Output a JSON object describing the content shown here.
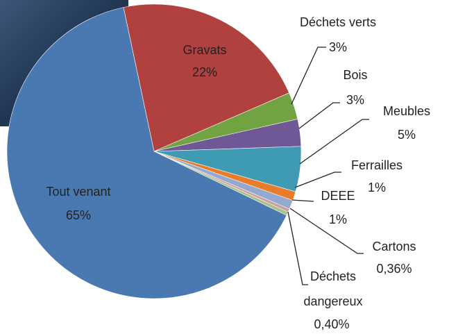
{
  "chart_data": {
    "type": "pie",
    "categories": [
      "Gravats",
      "Déchets verts",
      "Bois",
      "Meubles",
      "Ferrailles",
      "DEEE",
      "Cartons",
      "Déchets dangereux",
      "Tout venant"
    ],
    "values": [
      22,
      3,
      3,
      5,
      1,
      1,
      0.36,
      0.4,
      65
    ],
    "value_labels": [
      "22%",
      "3%",
      "3%",
      "5%",
      "1%",
      "1%",
      "0,36%",
      "0,40%",
      "65%"
    ],
    "colors": [
      "#b0413e",
      "#71a342",
      "#6f5895",
      "#3e9bb3",
      "#e87c2a",
      "#93a9cf",
      "#c9a0a0",
      "#a8c089",
      "#4a78b0"
    ]
  }
}
